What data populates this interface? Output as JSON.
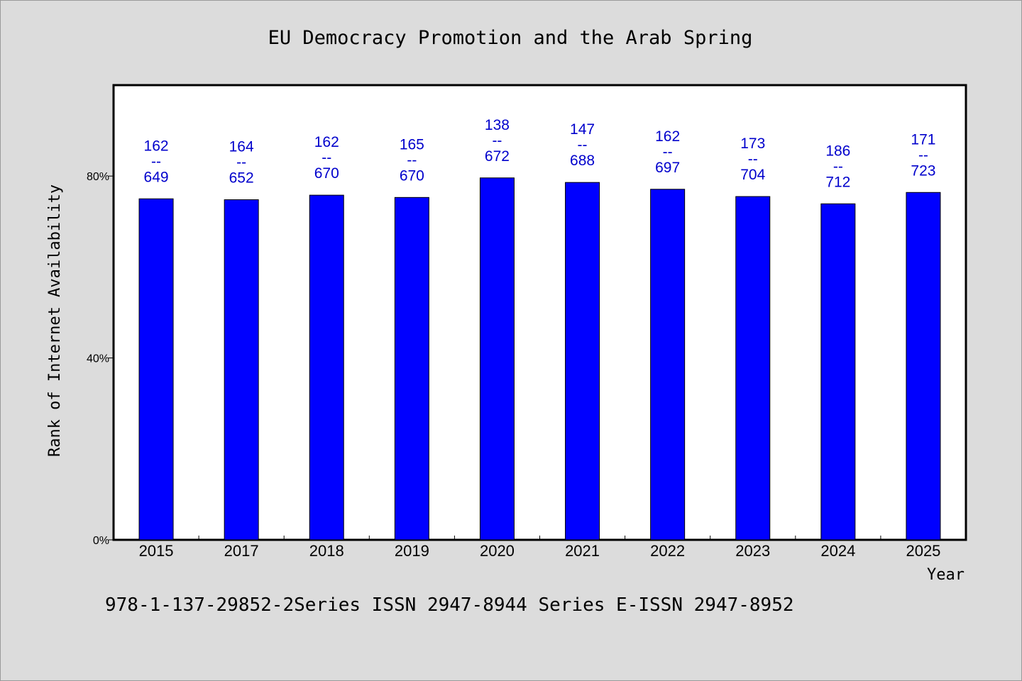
{
  "colors": {
    "background": "#dcdcdc",
    "plot_background": "#ffffff",
    "bar": "#0000ff",
    "label": "#0000cc"
  },
  "footer": "978-1-137-29852-2Series ISSN 2947-8944 Series E-ISSN 2947-8952",
  "chart_data": {
    "type": "bar",
    "title": "EU Democracy Promotion and the Arab Spring",
    "xlabel": "Year",
    "ylabel": "Rank of Internet Availability",
    "categories": [
      "2015",
      "2017",
      "2018",
      "2019",
      "2020",
      "2021",
      "2022",
      "2023",
      "2024",
      "2025"
    ],
    "values": [
      75.0,
      74.8,
      75.8,
      75.3,
      79.6,
      78.6,
      77.1,
      75.5,
      73.9,
      76.4
    ],
    "data_labels": [
      [
        "162",
        "--",
        "649"
      ],
      [
        "164",
        "--",
        "652"
      ],
      [
        "162",
        "--",
        "670"
      ],
      [
        "165",
        "--",
        "670"
      ],
      [
        "138",
        "--",
        "672"
      ],
      [
        "147",
        "--",
        "688"
      ],
      [
        "162",
        "--",
        "697"
      ],
      [
        "173",
        "--",
        "704"
      ],
      [
        "186",
        "--",
        "712"
      ],
      [
        "171",
        "--",
        "723"
      ]
    ],
    "y_unit": "%",
    "ylim": [
      0,
      100
    ],
    "yticks": [
      0,
      40,
      80
    ],
    "ytick_labels": [
      "0%",
      "40%",
      "80%"
    ],
    "grid": false,
    "legend": "none"
  }
}
